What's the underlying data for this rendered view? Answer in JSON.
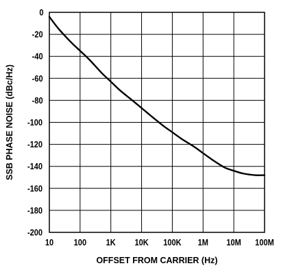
{
  "chart_data": {
    "type": "line",
    "title": "",
    "xlabel": "OFFSET FROM CARRIER (Hz)",
    "ylabel": "SSB PHASE NOISE (dBc/Hz)",
    "x_scale": "log",
    "xlim": [
      10,
      100000000
    ],
    "ylim": [
      -200,
      0
    ],
    "x_ticks": [
      {
        "value": 10,
        "label": "10"
      },
      {
        "value": 100,
        "label": "100"
      },
      {
        "value": 1000,
        "label": "1K"
      },
      {
        "value": 10000,
        "label": "10K"
      },
      {
        "value": 100000,
        "label": "100K"
      },
      {
        "value": 1000000,
        "label": "1M"
      },
      {
        "value": 10000000,
        "label": "10M"
      },
      {
        "value": 100000000,
        "label": "100M"
      }
    ],
    "y_ticks": [
      {
        "value": 0,
        "label": "0"
      },
      {
        "value": -20,
        "label": "-20"
      },
      {
        "value": -40,
        "label": "-40"
      },
      {
        "value": -60,
        "label": "-60"
      },
      {
        "value": -80,
        "label": "-80"
      },
      {
        "value": -100,
        "label": "-100"
      },
      {
        "value": -120,
        "label": "-120"
      },
      {
        "value": -140,
        "label": "-140"
      },
      {
        "value": -160,
        "label": "-160"
      },
      {
        "value": -180,
        "label": "-180"
      },
      {
        "value": -200,
        "label": "-200"
      }
    ],
    "grid": true,
    "color": "#000000",
    "series": [
      {
        "x": [
          10,
          20,
          50,
          100,
          200,
          500,
          1000,
          2000,
          5000,
          10000,
          20000,
          50000,
          100000,
          200000,
          500000,
          1000000,
          2000000,
          5000000,
          10000000,
          20000000,
          50000000,
          100000000
        ],
        "y": [
          -4,
          -15,
          -27,
          -35,
          -43,
          -55,
          -63,
          -71,
          -80,
          -87,
          -94,
          -103,
          -109,
          -115,
          -122,
          -128,
          -134,
          -141,
          -144,
          -146.5,
          -148,
          -148
        ]
      }
    ]
  }
}
